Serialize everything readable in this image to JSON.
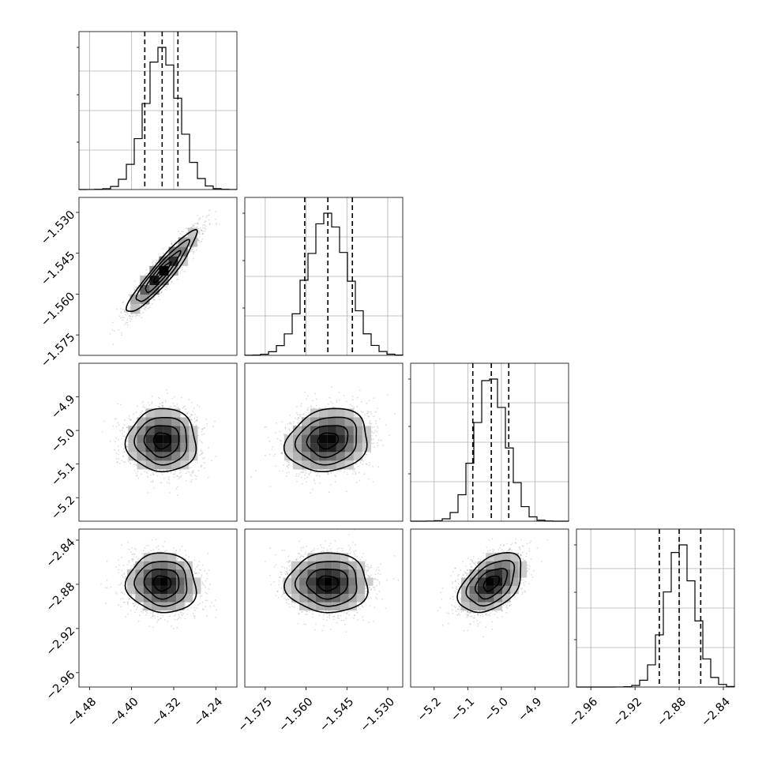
{
  "chart_data": {
    "type": "corner",
    "parameters": [
      {
        "index": 0,
        "mean": -4.342,
        "sd": 0.033,
        "quantiles": [
          -4.375,
          -4.342,
          -4.312
        ],
        "range": [
          -4.5,
          -4.2
        ],
        "ticks": [
          "−4.48",
          "−4.40",
          "−4.32",
          "−4.24"
        ],
        "tick_values": [
          -4.48,
          -4.4,
          -4.32,
          -4.24
        ]
      },
      {
        "index": 1,
        "mean": -1.552,
        "sd": 0.0075,
        "quantiles": [
          -1.5605,
          -1.552,
          -1.543
        ],
        "range": [
          -1.5825,
          -1.5245
        ],
        "ticks": [
          "−1.575",
          "−1.560",
          "−1.545",
          "−1.530"
        ],
        "tick_values": [
          -1.575,
          -1.56,
          -1.545,
          -1.53
        ]
      },
      {
        "index": 2,
        "mean": -5.03,
        "sd": 0.047,
        "quantiles": [
          -5.085,
          -5.03,
          -4.978
        ],
        "range": [
          -5.27,
          -4.8
        ],
        "ticks": [
          "−5.2",
          "−5.1",
          "−5.0",
          "−4.9"
        ],
        "tick_values": [
          -5.2,
          -5.1,
          -5.0,
          -4.9
        ]
      },
      {
        "index": 3,
        "mean": -2.879,
        "sd": 0.0135,
        "quantiles": [
          -2.898,
          -2.88,
          -2.8605
        ],
        "range": [
          -2.973,
          -2.83
        ],
        "ticks": [
          "−2.96",
          "−2.92",
          "−2.88",
          "−2.84"
        ],
        "tick_values": [
          -2.96,
          -2.92,
          -2.88,
          -2.84
        ]
      }
    ],
    "correlations": {
      "1-0": 0.93,
      "2-0": 0.0,
      "2-1": 0.15,
      "3-0": -0.05,
      "3-1": 0.0,
      "3-2": 0.45
    },
    "histogram_bins": 20,
    "grid": true,
    "xlabel": "",
    "ylabel": "",
    "title": ""
  }
}
